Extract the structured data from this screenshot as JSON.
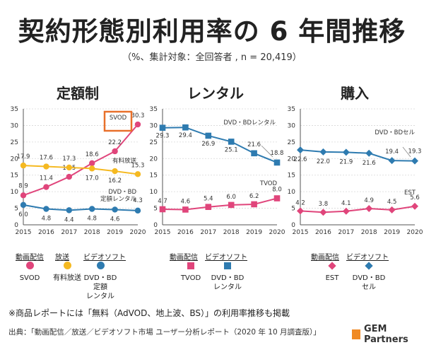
{
  "page": {
    "title": "契約形態別利用率の 6 年間推移",
    "subtitle": "（%、集計対象：全回答者 , n = 20,419）",
    "footnote": "※商品レポートには「無料（AdVOD、地上波、BS）」の利用率推移も掲載",
    "source": "出典：「動画配信／放送／ビデオソフト市場 ユーザー分析レポート（2020 年 10 月調査版）」",
    "logo": "GEM Partners"
  },
  "colors": {
    "pink": "#e0457b",
    "yellow": "#f5b921",
    "blue": "#2e7bb0",
    "highlight": "#e8702a"
  },
  "legends": [
    {
      "items": [
        {
          "head": "動画配信",
          "label": "SVOD",
          "color": "#e0457b",
          "marker": "circle"
        },
        {
          "head": "放送",
          "label": "有料放送",
          "color": "#f5b921",
          "marker": "circle"
        },
        {
          "head": "ビデオソフト",
          "label": "DVD・BD\n定額\nレンタル",
          "color": "#2e7bb0",
          "marker": "circle"
        }
      ]
    },
    {
      "items": [
        {
          "head": "動画配信",
          "label": "TVOD",
          "color": "#e0457b",
          "marker": "square"
        },
        {
          "head": "ビデオソフト",
          "label": "DVD・BD\nレンタル",
          "color": "#2e7bb0",
          "marker": "square"
        }
      ]
    },
    {
      "items": [
        {
          "head": "動画配信",
          "label": "EST",
          "color": "#e0457b",
          "marker": "diamond"
        },
        {
          "head": "ビデオソフト",
          "label": "DVD・BD\nセル",
          "color": "#2e7bb0",
          "marker": "diamond"
        }
      ]
    }
  ],
  "chart_data": [
    {
      "type": "line",
      "title": "定額制",
      "x": [
        2015,
        2016,
        2017,
        2018,
        2019,
        2020
      ],
      "ylim": [
        0,
        35
      ],
      "yticks": [
        0,
        5,
        10,
        15,
        20,
        25,
        30,
        35
      ],
      "grid": true,
      "marker": "circle",
      "series": [
        {
          "name": "SVOD",
          "color": "#e0457b",
          "values": [
            8.9,
            11.4,
            14.5,
            18.6,
            22.2,
            30.3
          ]
        },
        {
          "name": "有料放送",
          "color": "#f5b921",
          "values": [
            17.9,
            17.6,
            17.3,
            17.0,
            16.2,
            15.3
          ]
        },
        {
          "name": "DVD・BD定額レンタル",
          "color": "#2e7bb0",
          "values": [
            6.0,
            4.8,
            4.4,
            4.8,
            4.6,
            4.3
          ]
        }
      ],
      "annotations": [
        {
          "text": "SVOD",
          "series": 0
        },
        {
          "text": "有料放送",
          "series": 1
        },
        {
          "text": "DVD・BD",
          "series": 2
        },
        {
          "text": "定額レンタル",
          "series": 2
        }
      ]
    },
    {
      "type": "line",
      "title": "レンタル",
      "x": [
        2015,
        2016,
        2017,
        2018,
        2019,
        2020
      ],
      "ylim": [
        0,
        35
      ],
      "yticks": [
        0,
        5,
        10,
        15,
        20,
        25,
        30,
        35
      ],
      "grid": true,
      "marker": "square",
      "series": [
        {
          "name": "TVOD",
          "color": "#e0457b",
          "values": [
            4.7,
            4.6,
            5.4,
            6.0,
            6.2,
            8.0
          ]
        },
        {
          "name": "DVD・BDレンタル",
          "color": "#2e7bb0",
          "values": [
            29.3,
            29.4,
            26.9,
            25.1,
            21.6,
            18.8
          ]
        }
      ],
      "annotations": [
        {
          "text": "TVOD",
          "series": 0
        },
        {
          "text": "DVD・BDレンタル",
          "series": 1
        }
      ]
    },
    {
      "type": "line",
      "title": "購入",
      "x": [
        2015,
        2016,
        2017,
        2018,
        2019,
        2020
      ],
      "ylim": [
        0,
        35
      ],
      "yticks": [
        0,
        5,
        10,
        15,
        20,
        25,
        30,
        35
      ],
      "grid": true,
      "marker": "diamond",
      "series": [
        {
          "name": "EST",
          "color": "#e0457b",
          "values": [
            4.2,
            3.8,
            4.1,
            4.9,
            4.5,
            5.6
          ]
        },
        {
          "name": "DVD・BDセル",
          "color": "#2e7bb0",
          "values": [
            22.6,
            22.0,
            21.9,
            21.6,
            19.4,
            19.3
          ]
        }
      ],
      "annotations": [
        {
          "text": "EST",
          "series": 0
        },
        {
          "text": "DVD・BDセル",
          "series": 1
        }
      ]
    }
  ]
}
